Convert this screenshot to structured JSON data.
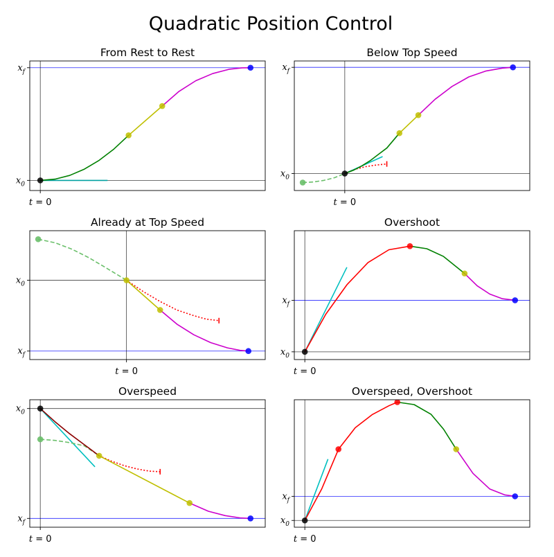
{
  "figure": {
    "title": "Quadratic Position Control"
  },
  "chart_data": [
    {
      "type": "line",
      "title": "From Rest to Rest",
      "yticks": [
        {
          "label": "x_0",
          "value": 0.0
        },
        {
          "label": "x_f",
          "value": 1.0
        }
      ],
      "xticks": [
        {
          "label": "t = 0",
          "value": 0.0
        }
      ],
      "xlim": [
        -0.05,
        1.07
      ],
      "ylim": [
        -0.09,
        1.06
      ],
      "hlines": [
        {
          "y": 0.0,
          "color": "#000000"
        },
        {
          "y": 1.0,
          "color": "#0000ff"
        }
      ],
      "vlines": [
        0.0
      ],
      "series": [
        {
          "color": "#00a0a0",
          "style": "solid",
          "x": [
            0.0,
            0.32
          ],
          "y": [
            0.0,
            0.0
          ]
        },
        {
          "color": "#008000",
          "style": "solid",
          "x": [
            0.0,
            0.07,
            0.14,
            0.21,
            0.28,
            0.35,
            0.42
          ],
          "y": [
            0.0,
            0.011,
            0.044,
            0.1,
            0.178,
            0.278,
            0.4
          ]
        },
        {
          "color": "#bfbf00",
          "style": "solid",
          "x": [
            0.42,
            0.58
          ],
          "y": [
            0.4,
            0.66
          ]
        },
        {
          "color": "#cc00cc",
          "style": "solid",
          "x": [
            0.58,
            0.66,
            0.74,
            0.82,
            0.9,
            0.96,
            1.0
          ],
          "y": [
            0.66,
            0.79,
            0.885,
            0.948,
            0.987,
            0.999,
            1.0
          ]
        }
      ],
      "points": [
        {
          "x": 0.0,
          "y": 0.0,
          "color": "#000000"
        },
        {
          "x": 0.42,
          "y": 0.4,
          "color": "#bfbf00"
        },
        {
          "x": 0.58,
          "y": 0.66,
          "color": "#bfbf00"
        },
        {
          "x": 1.0,
          "y": 1.0,
          "color": "#0000ff"
        }
      ]
    },
    {
      "type": "line",
      "title": "Below Top Speed",
      "yticks": [
        {
          "label": "x_0",
          "value": 0.0
        },
        {
          "label": "x_f",
          "value": 1.0
        }
      ],
      "xticks": [
        {
          "label": "t = 0",
          "value": 0.0
        }
      ],
      "xlim": [
        -0.24,
        0.88
      ],
      "ylim": [
        -0.16,
        1.06
      ],
      "hlines": [
        {
          "y": 0.0,
          "color": "#000000"
        },
        {
          "y": 1.0,
          "color": "#0000ff"
        }
      ],
      "vlines": [
        0.0
      ],
      "series": [
        {
          "color": "#6abf6a",
          "style": "dashed",
          "x": [
            -0.2,
            -0.15,
            -0.1,
            -0.05,
            0.0
          ],
          "y": [
            -0.085,
            -0.08,
            -0.065,
            -0.04,
            0.0
          ]
        },
        {
          "color": "#00bfbf",
          "style": "solid",
          "x": [
            0.0,
            0.18
          ],
          "y": [
            0.0,
            0.16
          ]
        },
        {
          "color": "#ff0000",
          "style": "dotted",
          "x": [
            0.0,
            0.05,
            0.1,
            0.15,
            0.2
          ],
          "y": [
            0.0,
            0.04,
            0.065,
            0.08,
            0.09
          ]
        },
        {
          "color": "#008000",
          "style": "solid",
          "x": [
            0.0,
            0.04,
            0.08,
            0.12,
            0.16,
            0.2,
            0.26
          ],
          "y": [
            0.0,
            0.03,
            0.07,
            0.12,
            0.18,
            0.24,
            0.38
          ]
        },
        {
          "color": "#bfbf00",
          "style": "solid",
          "x": [
            0.26,
            0.35
          ],
          "y": [
            0.38,
            0.55
          ]
        },
        {
          "color": "#cc00cc",
          "style": "solid",
          "x": [
            0.35,
            0.43,
            0.51,
            0.59,
            0.67,
            0.75,
            0.8
          ],
          "y": [
            0.55,
            0.7,
            0.82,
            0.91,
            0.965,
            0.993,
            1.0
          ]
        }
      ],
      "points": [
        {
          "x": -0.2,
          "y": -0.085,
          "color": "#6abf6a"
        },
        {
          "x": 0.0,
          "y": 0.0,
          "color": "#000000"
        },
        {
          "x": 0.26,
          "y": 0.38,
          "color": "#bfbf00"
        },
        {
          "x": 0.35,
          "y": 0.55,
          "color": "#bfbf00"
        },
        {
          "x": 0.8,
          "y": 1.0,
          "color": "#0000ff"
        }
      ]
    },
    {
      "type": "line",
      "title": "Already at Top Speed",
      "yticks": [
        {
          "label": "x_0",
          "value": 0.0
        },
        {
          "label": "x_f",
          "value": -1.0
        }
      ],
      "xticks": [
        {
          "label": "t = 0",
          "value": 0.0
        }
      ],
      "xlim": [
        -0.46,
        0.66
      ],
      "ylim": [
        -1.12,
        0.7
      ],
      "hlines": [
        {
          "y": 0.0,
          "color": "#000000"
        },
        {
          "y": -1.0,
          "color": "#0000ff"
        }
      ],
      "vlines": [
        0.0
      ],
      "series": [
        {
          "color": "#6abf6a",
          "style": "dashed",
          "x": [
            -0.42,
            -0.34,
            -0.26,
            -0.18,
            -0.1,
            0.0
          ],
          "y": [
            0.58,
            0.53,
            0.44,
            0.32,
            0.18,
            0.0
          ]
        },
        {
          "color": "#ff0000",
          "style": "dotted",
          "x": [
            0.0,
            0.08,
            0.16,
            0.24,
            0.32,
            0.38,
            0.44
          ],
          "y": [
            0.0,
            -0.16,
            -0.3,
            -0.42,
            -0.5,
            -0.55,
            -0.57
          ]
        },
        {
          "color": "#bfbf00",
          "style": "solid",
          "x": [
            0.0,
            0.16
          ],
          "y": [
            0.0,
            -0.42
          ]
        },
        {
          "color": "#cc00cc",
          "style": "solid",
          "x": [
            0.16,
            0.24,
            0.32,
            0.4,
            0.48,
            0.54,
            0.58
          ],
          "y": [
            -0.42,
            -0.62,
            -0.77,
            -0.88,
            -0.955,
            -0.99,
            -1.0
          ]
        }
      ],
      "points": [
        {
          "x": -0.42,
          "y": 0.58,
          "color": "#6abf6a"
        },
        {
          "x": 0.0,
          "y": 0.0,
          "color": "#bfbf00"
        },
        {
          "x": 0.16,
          "y": -0.42,
          "color": "#bfbf00"
        },
        {
          "x": 0.58,
          "y": -1.0,
          "color": "#0000ff"
        }
      ]
    },
    {
      "type": "line",
      "title": "Overshoot",
      "yticks": [
        {
          "label": "x_0",
          "value": 0.0
        },
        {
          "label": "x_f",
          "value": 1.0
        }
      ],
      "xticks": [
        {
          "label": "t = 0",
          "value": 0.0
        }
      ],
      "xlim": [
        -0.05,
        1.07
      ],
      "ylim": [
        -0.15,
        2.35
      ],
      "hlines": [
        {
          "y": 0.0,
          "color": "#000000"
        },
        {
          "y": 1.0,
          "color": "#0000ff"
        }
      ],
      "vlines": [
        0.0
      ],
      "series": [
        {
          "color": "#00bfbf",
          "style": "solid",
          "x": [
            0.0,
            0.2
          ],
          "y": [
            0.0,
            1.64
          ]
        },
        {
          "color": "#ff0000",
          "style": "solid",
          "x": [
            0.0,
            0.1,
            0.2,
            0.3,
            0.4,
            0.5
          ],
          "y": [
            0.0,
            0.73,
            1.3,
            1.73,
            1.98,
            2.05
          ]
        },
        {
          "color": "#008000",
          "style": "solid",
          "x": [
            0.5,
            0.58,
            0.66,
            0.76
          ],
          "y": [
            2.05,
            2.0,
            1.85,
            1.52
          ]
        },
        {
          "color": "#cc00cc",
          "style": "solid",
          "x": [
            0.76,
            0.82,
            0.88,
            0.94,
            1.0
          ],
          "y": [
            1.52,
            1.28,
            1.12,
            1.03,
            1.0
          ]
        }
      ],
      "points": [
        {
          "x": 0.0,
          "y": 0.0,
          "color": "#000000"
        },
        {
          "x": 0.5,
          "y": 2.05,
          "color": "#ff0000"
        },
        {
          "x": 0.76,
          "y": 1.52,
          "color": "#bfbf00"
        },
        {
          "x": 1.0,
          "y": 1.0,
          "color": "#0000ff"
        }
      ]
    },
    {
      "type": "line",
      "title": "Overspeed",
      "yticks": [
        {
          "label": "x_0",
          "value": 0.0
        },
        {
          "label": "x_f",
          "value": -1.0
        }
      ],
      "xticks": [
        {
          "label": "t = 0",
          "value": 0.0
        }
      ],
      "xlim": [
        -0.05,
        1.07
      ],
      "ylim": [
        -1.08,
        0.08
      ],
      "hlines": [
        {
          "y": 0.0,
          "color": "#000000"
        },
        {
          "y": -1.0,
          "color": "#0000ff"
        }
      ],
      "vlines": [
        0.0
      ],
      "series": [
        {
          "color": "#00bfbf",
          "style": "solid",
          "x": [
            0.0,
            0.26
          ],
          "y": [
            0.0,
            -0.53
          ]
        },
        {
          "color": "#6abf6a",
          "style": "dashed",
          "x": [
            0.0,
            0.07,
            0.14,
            0.21,
            0.28
          ],
          "y": [
            -0.28,
            -0.29,
            -0.31,
            -0.34,
            -0.43
          ]
        },
        {
          "color": "#ff0000",
          "style": "dotted",
          "x": [
            0.28,
            0.34,
            0.4,
            0.46,
            0.52,
            0.57
          ],
          "y": [
            -0.43,
            -0.48,
            -0.52,
            -0.55,
            -0.57,
            -0.575
          ]
        },
        {
          "color": "#8b0000",
          "style": "solid",
          "x": [
            0.0,
            0.07,
            0.14,
            0.21,
            0.28
          ],
          "y": [
            0.0,
            -0.12,
            -0.23,
            -0.33,
            -0.43
          ]
        },
        {
          "color": "#bfbf00",
          "style": "solid",
          "x": [
            0.28,
            0.71
          ],
          "y": [
            -0.43,
            -0.86
          ]
        },
        {
          "color": "#cc00cc",
          "style": "solid",
          "x": [
            0.71,
            0.8,
            0.88,
            0.95,
            1.0
          ],
          "y": [
            -0.86,
            -0.935,
            -0.975,
            -0.995,
            -1.0
          ]
        }
      ],
      "points": [
        {
          "x": 0.0,
          "y": -0.28,
          "color": "#6abf6a"
        },
        {
          "x": 0.0,
          "y": 0.0,
          "color": "#000000"
        },
        {
          "x": 0.28,
          "y": -0.43,
          "color": "#bfbf00"
        },
        {
          "x": 0.71,
          "y": -0.86,
          "color": "#bfbf00"
        },
        {
          "x": 1.0,
          "y": -1.0,
          "color": "#0000ff"
        }
      ]
    },
    {
      "type": "line",
      "title": "Overspeed, Overshoot",
      "yticks": [
        {
          "label": "x_0",
          "value": 0.0
        },
        {
          "label": "x_f",
          "value": 1.0
        }
      ],
      "xticks": [
        {
          "label": "t = 0",
          "value": 0.0
        }
      ],
      "xlim": [
        -0.05,
        1.07
      ],
      "ylim": [
        -0.28,
        5.0
      ],
      "hlines": [
        {
          "y": 0.0,
          "color": "#000000"
        },
        {
          "y": 1.0,
          "color": "#0000ff"
        }
      ],
      "vlines": [
        0.0
      ],
      "series": [
        {
          "color": "#00bfbf",
          "style": "solid",
          "x": [
            0.0,
            0.11
          ],
          "y": [
            0.0,
            2.54
          ]
        },
        {
          "color": "#ff0000",
          "style": "solid",
          "x": [
            0.0,
            0.08,
            0.16,
            0.24,
            0.32,
            0.4,
            0.44
          ],
          "y": [
            0.0,
            1.3,
            2.95,
            3.84,
            4.38,
            4.75,
            4.9
          ]
        },
        {
          "color": "#008000",
          "style": "solid",
          "x": [
            0.44,
            0.52,
            0.6,
            0.66,
            0.72
          ],
          "y": [
            4.9,
            4.8,
            4.4,
            3.78,
            2.95
          ]
        },
        {
          "color": "#cc00cc",
          "style": "solid",
          "x": [
            0.72,
            0.8,
            0.88,
            0.95,
            1.0
          ],
          "y": [
            2.95,
            1.95,
            1.3,
            1.06,
            1.0
          ]
        }
      ],
      "points": [
        {
          "x": 0.0,
          "y": 0.0,
          "color": "#000000"
        },
        {
          "x": 0.16,
          "y": 2.95,
          "color": "#ff0000"
        },
        {
          "x": 0.44,
          "y": 4.9,
          "color": "#ff0000"
        },
        {
          "x": 0.72,
          "y": 2.95,
          "color": "#bfbf00"
        },
        {
          "x": 1.0,
          "y": 1.0,
          "color": "#0000ff"
        }
      ]
    }
  ]
}
